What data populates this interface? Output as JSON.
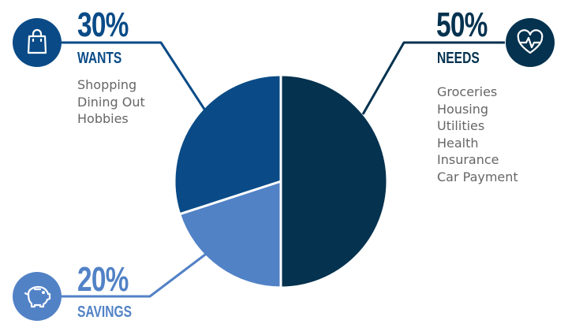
{
  "colors": {
    "needs": "#04324f",
    "wants": "#0a4b87",
    "savings": "#5282c6",
    "text_gray": "#666666",
    "background": "#ffffff"
  },
  "chart_data": {
    "type": "pie",
    "title": "",
    "start_angle_deg": 0,
    "direction": "clockwise",
    "slices": [
      {
        "label": "NEEDS",
        "percent_label": "50%",
        "value": 50,
        "color": "#04324f",
        "icon": "heart-pulse-icon",
        "items": [
          "Groceries",
          "Housing",
          "Utilities",
          "Health",
          "Insurance",
          "Car Payment"
        ]
      },
      {
        "label": "SAVINGS",
        "percent_label": "20%",
        "value": 20,
        "color": "#5282c6",
        "icon": "piggy-bank-icon",
        "items": []
      },
      {
        "label": "WANTS",
        "percent_label": "30%",
        "value": 30,
        "color": "#0a4b87",
        "icon": "shopping-bag-icon",
        "items": [
          "Shopping",
          "Dining Out",
          "Hobbies"
        ]
      }
    ]
  }
}
